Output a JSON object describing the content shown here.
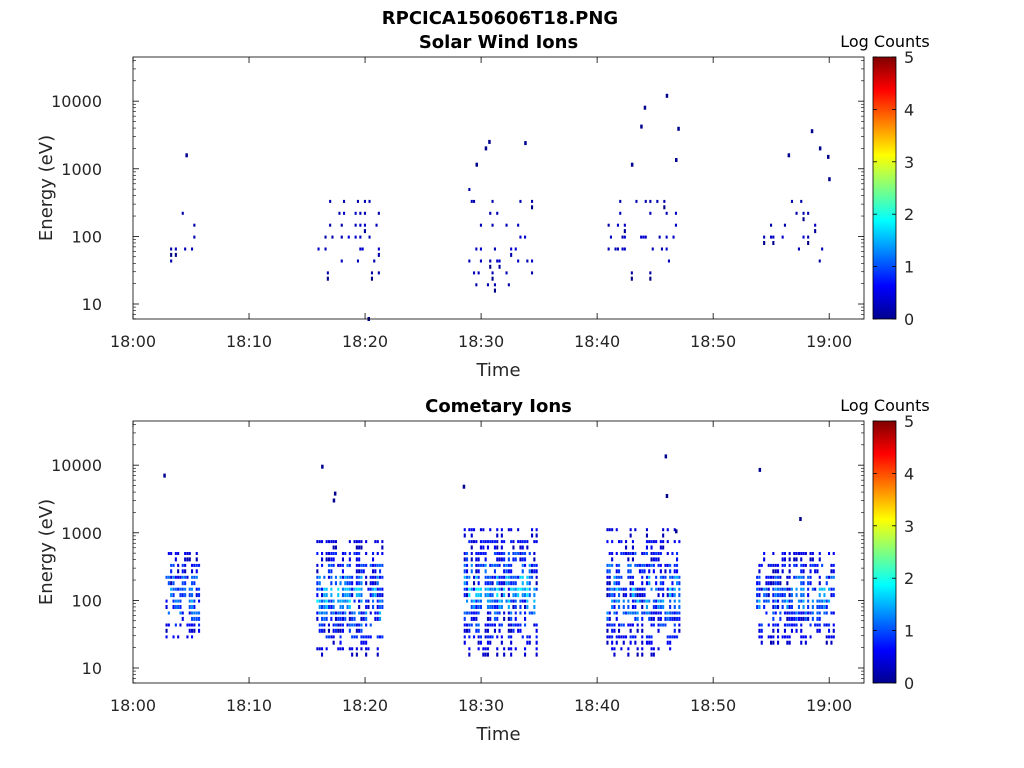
{
  "figure": {
    "title": "RPCICA150606T18.PNG"
  },
  "chart_data": [
    {
      "type": "heatmap",
      "title": "Solar Wind Ions",
      "xlabel": "Time",
      "ylabel": "Energy (eV)",
      "x_tick_labels": [
        "18:00",
        "18:10",
        "18:20",
        "18:30",
        "18:40",
        "18:50",
        "19:00"
      ],
      "x_ticks_min": [
        0,
        10,
        20,
        30,
        40,
        50,
        60
      ],
      "xlim_min": [
        0,
        63
      ],
      "y_tick_labels": [
        "10",
        "100",
        "1000",
        "10000"
      ],
      "y_ticks": [
        10,
        100,
        1000,
        10000
      ],
      "ylim": [
        6,
        45000
      ],
      "y_scale": "log",
      "colorbar": {
        "label": "Log Counts",
        "range": [
          0,
          5
        ],
        "ticks": [
          "0",
          "1",
          "2",
          "3",
          "4",
          "5"
        ],
        "colormap": "jet"
      },
      "clusters": [
        {
          "t_range_min": [
            3.2,
            5.3
          ],
          "e_range": [
            28,
            220
          ],
          "log_counts": [
            0.2,
            0.4
          ],
          "density": 0.18
        },
        {
          "t_range_min": [
            15.9,
            21.3
          ],
          "e_range": [
            18,
            420
          ],
          "log_counts": [
            0.2,
            0.5
          ],
          "density": 0.2
        },
        {
          "t_range_min": [
            28.7,
            34.4
          ],
          "e_range": [
            12,
            480
          ],
          "log_counts": [
            0.2,
            0.5
          ],
          "density": 0.2
        },
        {
          "t_range_min": [
            40.9,
            46.8
          ],
          "e_range": [
            24,
            340
          ],
          "log_counts": [
            0.2,
            0.5
          ],
          "density": 0.2
        },
        {
          "t_range_min": [
            53.7,
            59.4
          ],
          "e_range": [
            30,
            330
          ],
          "log_counts": [
            0.2,
            0.4
          ],
          "density": 0.17
        }
      ],
      "points": [
        {
          "t_min": 4.6,
          "e": 1580
        },
        {
          "t_min": 29.6,
          "e": 1150
        },
        {
          "t_min": 30.4,
          "e": 2000
        },
        {
          "t_min": 30.7,
          "e": 2500
        },
        {
          "t_min": 33.8,
          "e": 2400
        },
        {
          "t_min": 43.0,
          "e": 1150
        },
        {
          "t_min": 43.8,
          "e": 4200
        },
        {
          "t_min": 44.1,
          "e": 8000
        },
        {
          "t_min": 46.0,
          "e": 12000
        },
        {
          "t_min": 46.8,
          "e": 1350
        },
        {
          "t_min": 47.0,
          "e": 3900
        },
        {
          "t_min": 56.5,
          "e": 1580
        },
        {
          "t_min": 58.5,
          "e": 3600
        },
        {
          "t_min": 59.2,
          "e": 2000
        },
        {
          "t_min": 59.9,
          "e": 1500
        },
        {
          "t_min": 60.0,
          "e": 700
        },
        {
          "t_min": 20.3,
          "e": 6
        }
      ]
    },
    {
      "type": "heatmap",
      "title": "Cometary Ions",
      "xlabel": "Time",
      "ylabel": "Energy (eV)",
      "x_tick_labels": [
        "18:00",
        "18:10",
        "18:20",
        "18:30",
        "18:40",
        "18:50",
        "19:00"
      ],
      "x_ticks_min": [
        0,
        10,
        20,
        30,
        40,
        50,
        60
      ],
      "xlim_min": [
        0,
        63
      ],
      "y_tick_labels": [
        "10",
        "100",
        "1000",
        "10000"
      ],
      "y_ticks": [
        10,
        100,
        1000,
        10000
      ],
      "ylim": [
        6,
        45000
      ],
      "y_scale": "log",
      "colorbar": {
        "label": "Log Counts",
        "range": [
          0,
          5
        ],
        "ticks": [
          "0",
          "1",
          "2",
          "3",
          "4",
          "5"
        ],
        "colormap": "jet"
      },
      "clusters": [
        {
          "t_range_min": [
            2.8,
            5.8
          ],
          "e_range": [
            18,
            600
          ],
          "log_counts": [
            0.4,
            1.8
          ],
          "density": 0.75
        },
        {
          "t_range_min": [
            15.8,
            21.6
          ],
          "e_range": [
            12,
            800
          ],
          "log_counts": [
            0.4,
            2.0
          ],
          "density": 0.8
        },
        {
          "t_range_min": [
            28.5,
            34.9
          ],
          "e_range": [
            12,
            1300
          ],
          "log_counts": [
            0.4,
            2.0
          ],
          "density": 0.8
        },
        {
          "t_range_min": [
            40.8,
            47.2
          ],
          "e_range": [
            12,
            1100
          ],
          "log_counts": [
            0.4,
            1.9
          ],
          "density": 0.8
        },
        {
          "t_range_min": [
            53.7,
            60.5
          ],
          "e_range": [
            18,
            600
          ],
          "log_counts": [
            0.4,
            1.8
          ],
          "density": 0.75
        }
      ],
      "points": [
        {
          "t_min": 2.7,
          "e": 7000
        },
        {
          "t_min": 16.3,
          "e": 9500
        },
        {
          "t_min": 17.3,
          "e": 3000
        },
        {
          "t_min": 17.4,
          "e": 3800
        },
        {
          "t_min": 28.5,
          "e": 4800
        },
        {
          "t_min": 45.9,
          "e": 13500
        },
        {
          "t_min": 46.0,
          "e": 3500
        },
        {
          "t_min": 46.8,
          "e": 1050
        },
        {
          "t_min": 54.0,
          "e": 8500
        },
        {
          "t_min": 57.5,
          "e": 1600
        }
      ]
    }
  ]
}
